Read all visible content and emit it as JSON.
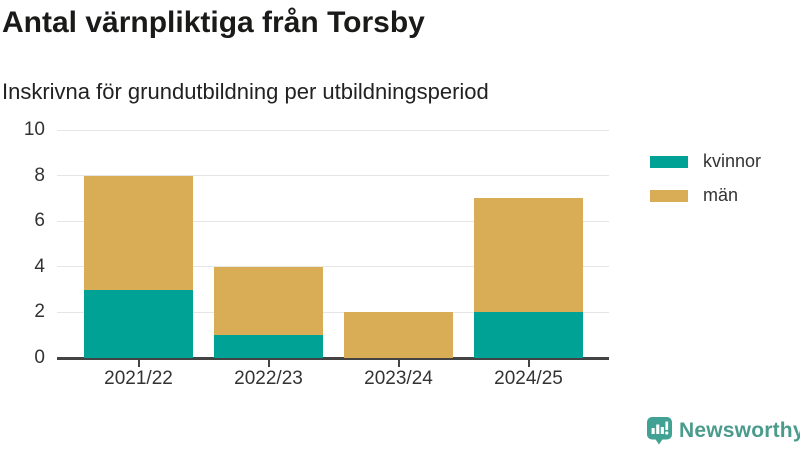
{
  "chart_data": {
    "type": "bar",
    "stacked": true,
    "title": "Antal värnpliktiga från Torsby",
    "subtitle": "Inskrivna för grundutbildning per utbildningsperiod",
    "categories": [
      "2021/22",
      "2022/23",
      "2023/24",
      "2024/25"
    ],
    "series": [
      {
        "name": "kvinnor",
        "color": "#00a296",
        "values": [
          3,
          1,
          0,
          2
        ]
      },
      {
        "name": "män",
        "color": "#d9ad55",
        "values": [
          5,
          3,
          2,
          5
        ]
      }
    ],
    "totals": [
      8,
      4,
      2,
      7
    ],
    "ylim": [
      0,
      10
    ],
    "yticks": [
      0,
      2,
      4,
      6,
      8,
      10
    ],
    "xlabel": "",
    "ylabel": "",
    "grid": true,
    "legend_position": "top-right"
  },
  "colors": {
    "axis": "#434343",
    "grid": "#e6e6e6",
    "tick_label": "#333333",
    "brand_icon": "#41a294",
    "brand_text": "#4b9b8d"
  },
  "footer": {
    "brand": "Newsworthy"
  }
}
